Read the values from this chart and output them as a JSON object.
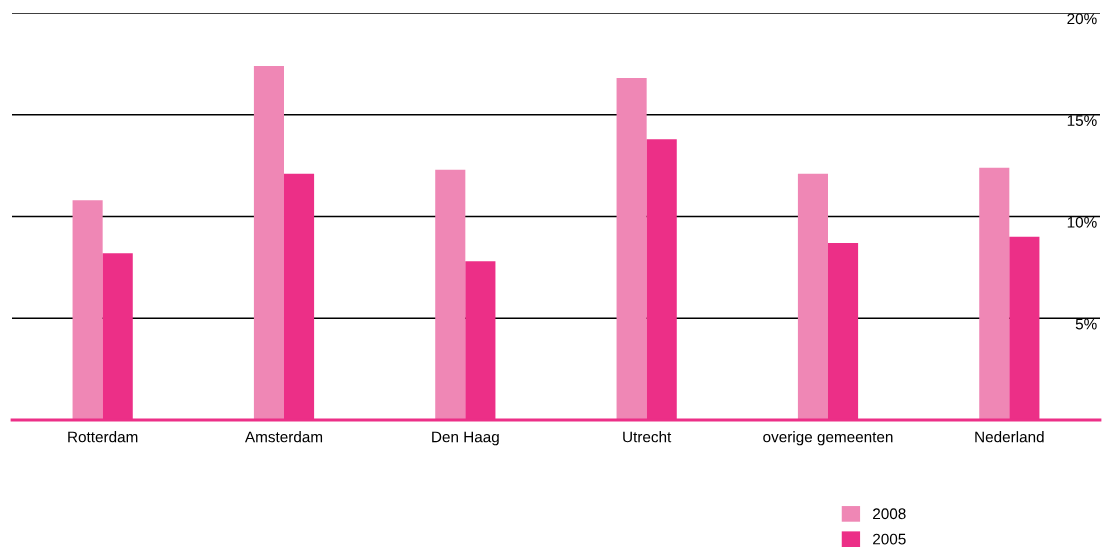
{
  "chart_data": {
    "type": "bar",
    "categories": [
      "Rotterdam",
      "Amsterdam",
      "Den Haag",
      "Utrecht",
      "overige gemeenten",
      "Nederland"
    ],
    "series": [
      {
        "name": "2008",
        "color": "#ef87b5",
        "values": [
          10.8,
          17.4,
          12.3,
          16.8,
          12.1,
          12.4
        ]
      },
      {
        "name": "2005",
        "color": "#ec2f87",
        "values": [
          8.2,
          12.1,
          7.8,
          13.8,
          8.7,
          9.0
        ]
      }
    ],
    "ylim": [
      0,
      20
    ],
    "yticks": [
      {
        "value": 5,
        "label": "5%"
      },
      {
        "value": 10,
        "label": "10%"
      },
      {
        "value": 15,
        "label": "15%"
      },
      {
        "value": 20,
        "label": "20%"
      }
    ],
    "grid": "y",
    "legend": "bottom right"
  }
}
